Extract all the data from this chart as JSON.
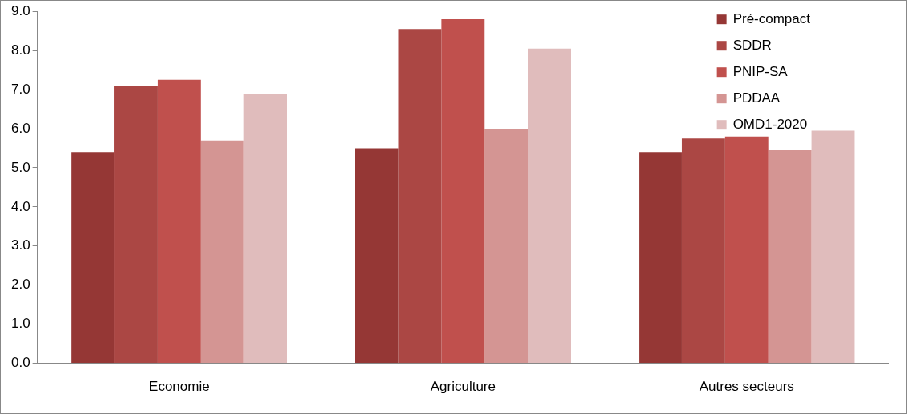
{
  "chart_data": {
    "type": "bar",
    "categories": [
      "Economie",
      "Agriculture",
      "Autres secteurs"
    ],
    "series": [
      {
        "name": "Pré-compact",
        "color": "#953735",
        "values": [
          5.4,
          5.5,
          5.4
        ]
      },
      {
        "name": "SDDR",
        "color": "#ab4744",
        "values": [
          7.1,
          8.55,
          5.75
        ]
      },
      {
        "name": "PNIP-SA",
        "color": "#c0504d",
        "values": [
          7.25,
          8.8,
          5.8
        ]
      },
      {
        "name": "PDDAA",
        "color": "#d49593",
        "values": [
          5.7,
          6.0,
          5.45
        ]
      },
      {
        "name": "OMD1-2020",
        "color": "#e0bcbc",
        "values": [
          6.9,
          8.05,
          5.95
        ]
      }
    ],
    "ylim": [
      0,
      9
    ],
    "yticks": [
      {
        "value": 0,
        "label": "0.0"
      },
      {
        "value": 1,
        "label": "1.0"
      },
      {
        "value": 2,
        "label": "2.0"
      },
      {
        "value": 3,
        "label": "3.0"
      },
      {
        "value": 4,
        "label": "4.0"
      },
      {
        "value": 5,
        "label": "5.0"
      },
      {
        "value": 6,
        "label": "6.0"
      },
      {
        "value": 7,
        "label": "7.0"
      },
      {
        "value": 8,
        "label": "8.0"
      },
      {
        "value": 9,
        "label": "9.0"
      }
    ],
    "grid": false,
    "legend": "top right"
  }
}
